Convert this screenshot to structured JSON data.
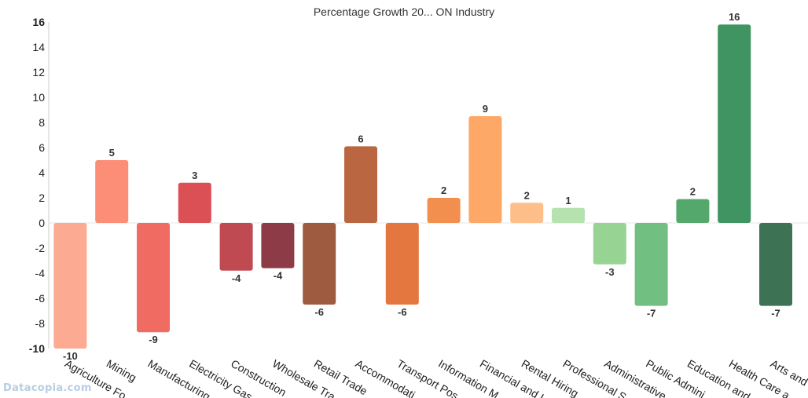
{
  "watermark": "Datacopia.com",
  "chart_data": {
    "type": "bar",
    "title": "Percentage Growth 20... ON Industry",
    "xlabel": "",
    "ylabel": "",
    "ylim": [
      -10,
      16
    ],
    "yticks": [
      -10,
      -8,
      -6,
      -4,
      -2,
      0,
      2,
      4,
      6,
      8,
      10,
      12,
      14,
      16
    ],
    "categories": [
      "Agriculture Fo...",
      "Mining",
      "Manufacturing",
      "Electricity Gas...",
      "Construction",
      "Wholesale Tra...",
      "Retail Trade",
      "Accommodati...",
      "Transport Pos...",
      "Information M...",
      "Financial and I...",
      "Rental Hiring ...",
      "Professional S...",
      "Administrative...",
      "Public Admini...",
      "Education and...",
      "Health Care a...",
      "Arts and ..."
    ],
    "values": [
      -10,
      5,
      -8.7,
      3.2,
      -3.8,
      -3.6,
      -6.5,
      6.1,
      -6.5,
      2,
      8.5,
      1.6,
      1.2,
      -3.3,
      -6.6,
      1.9,
      15.8,
      -6.6
    ],
    "data_labels": [
      "-10",
      "5",
      "-9",
      "3",
      "-4",
      "-4",
      "-6",
      "6",
      "-6",
      "2",
      "9",
      "2",
      "1",
      "-3",
      "-7",
      "2",
      "16",
      "-7"
    ],
    "colors": [
      "#fdaa92",
      "#fc8d77",
      "#f06b61",
      "#da5055",
      "#bf4a52",
      "#8e3b48",
      "#9e5b40",
      "#ba6741",
      "#e4763f",
      "#f28f4e",
      "#fda866",
      "#fdbe8a",
      "#b6e2b0",
      "#97d493",
      "#71c081",
      "#55a86c",
      "#3f9461",
      "#3e7254"
    ],
    "grid": false,
    "legend": "none"
  }
}
